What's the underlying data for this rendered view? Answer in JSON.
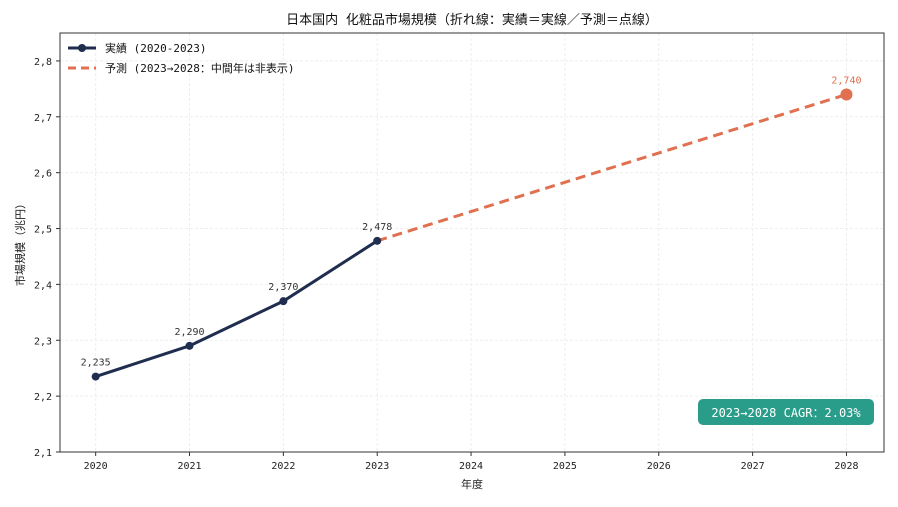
{
  "chart_data": {
    "type": "line",
    "title": "日本国内 化粧品市場規模（折れ線：実績＝実線／予測＝点線）",
    "xlabel": "年度",
    "ylabel": "市場規模（兆円）",
    "xlim": [
      2019.62,
      2028.4
    ],
    "ylim": [
      2.1,
      2.85
    ],
    "xticks": [
      "2020",
      "2021",
      "2022",
      "2023",
      "2024",
      "2025",
      "2026",
      "2027",
      "2028"
    ],
    "yticks": [
      "2,1",
      "2,2",
      "2,3",
      "2,4",
      "2,5",
      "2,6",
      "2,7",
      "2,8"
    ],
    "grid": true,
    "legend_position": "top-left",
    "series": [
      {
        "name": "実績 (2020-2023)",
        "color": "#1f2d4e",
        "style": "solid",
        "x": [
          2020,
          2021,
          2022,
          2023
        ],
        "y": [
          2.235,
          2.29,
          2.37,
          2.478
        ],
        "labels": [
          "2,235",
          "2,290",
          "2,370",
          "2,478"
        ]
      },
      {
        "name": "予測 (2023→2028：中間年は非表示)",
        "color": "#e07050",
        "style": "dashed",
        "x": [
          2023,
          2028
        ],
        "y": [
          2.478,
          2.74
        ],
        "labels": [
          "",
          "2,740"
        ]
      }
    ],
    "annotation": {
      "text": "2023→2028 CAGR：2.03%",
      "color": "#2a9d8a"
    }
  }
}
